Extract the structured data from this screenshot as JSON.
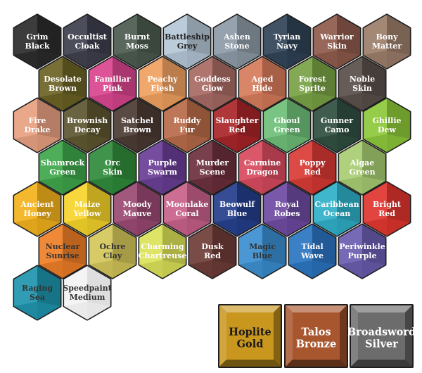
{
  "hex_swatches": [
    {
      "id": "grim-black",
      "line1": "Grim",
      "line2": "Black",
      "color": "#2b2b2b",
      "text": "#ffffff"
    },
    {
      "id": "occultist-cloak",
      "line1": "Occultist",
      "line2": "Cloak",
      "color": "#3e3f4d",
      "text": "#ffffff"
    },
    {
      "id": "burnt-moss",
      "line1": "Burnt",
      "line2": "Moss",
      "color": "#4b5a4e",
      "text": "#ffffff"
    },
    {
      "id": "battleship-grey",
      "line1": "Battleship",
      "line2": "Grey",
      "color": "#b5c7d6",
      "text": "#222222"
    },
    {
      "id": "ashen-stone",
      "line1": "Ashen",
      "line2": "Stone",
      "color": "#8d9aa6",
      "text": "#ffffff"
    },
    {
      "id": "tyrian-navy",
      "line1": "Tyrian",
      "line2": "Navy",
      "color": "#2f4356",
      "text": "#ffffff"
    },
    {
      "id": "warrior-skin",
      "line1": "Warrior",
      "line2": "Skin",
      "color": "#8e5a4c",
      "text": "#ffffff"
    },
    {
      "id": "bony-matter",
      "line1": "Bony",
      "line2": "Matter",
      "color": "#9c7e6a",
      "text": "#ffffff"
    },
    {
      "id": "desolate-brown",
      "line1": "Desolate",
      "line2": "Brown",
      "color": "#6b6224",
      "text": "#ffffff"
    },
    {
      "id": "familiar-pink",
      "line1": "Familiar",
      "line2": "Pink",
      "color": "#d9458e",
      "text": "#ffffff"
    },
    {
      "id": "peachy-flesh",
      "line1": "Peachy",
      "line2": "Flesh",
      "color": "#f0a060",
      "text": "#ffffff"
    },
    {
      "id": "goddess-glow",
      "line1": "Goddess",
      "line2": "Glow",
      "color": "#a86a64",
      "text": "#ffffff"
    },
    {
      "id": "aged-hide",
      "line1": "Aged",
      "line2": "Hide",
      "color": "#d67a5a",
      "text": "#ffffff"
    },
    {
      "id": "forest-sprite",
      "line1": "Forest",
      "line2": "Sprite",
      "color": "#78a245",
      "text": "#ffffff"
    },
    {
      "id": "noble-skin",
      "line1": "Noble",
      "line2": "Skin",
      "color": "#5a4f4a",
      "text": "#ffffff"
    },
    {
      "id": "fire-drake",
      "line1": "Fire",
      "line2": "Drake",
      "color": "#e8a081",
      "text": "#ffffff"
    },
    {
      "id": "brownish-decay",
      "line1": "Brownish",
      "line2": "Decay",
      "color": "#5d5530",
      "text": "#ffffff"
    },
    {
      "id": "satchel-brown",
      "line1": "Satchel",
      "line2": "Brown",
      "color": "#4b3a33",
      "text": "#ffffff"
    },
    {
      "id": "ruddy-fur",
      "line1": "Ruddy",
      "line2": "Fur",
      "color": "#b76a48",
      "text": "#ffffff"
    },
    {
      "id": "slaughter-red",
      "line1": "Slaughter",
      "line2": "Red",
      "color": "#a82428",
      "text": "#ffffff"
    },
    {
      "id": "ghoul-green",
      "line1": "Ghoul",
      "line2": "Green",
      "color": "#6ebf78",
      "text": "#ffffff"
    },
    {
      "id": "gunner-camo",
      "line1": "Gunner",
      "line2": "Camo",
      "color": "#2f4e40",
      "text": "#ffffff"
    },
    {
      "id": "ghillie-dew",
      "line1": "Ghillie",
      "line2": "Dew",
      "color": "#8cc83a",
      "text": "#ffffff"
    },
    {
      "id": "shamrock-green",
      "line1": "Shamrock",
      "line2": "Green",
      "color": "#3ea64a",
      "text": "#ffffff"
    },
    {
      "id": "orc-skin",
      "line1": "Orc",
      "line2": "Skin",
      "color": "#2f8a3a",
      "text": "#ffffff"
    },
    {
      "id": "purple-swarm",
      "line1": "Purple",
      "line2": "Swarm",
      "color": "#6a3e96",
      "text": "#ffffff"
    },
    {
      "id": "murder-scene",
      "line1": "Murder",
      "line2": "Scene",
      "color": "#6c2e3c",
      "text": "#ffffff"
    },
    {
      "id": "carmine-dragon",
      "line1": "Carmine",
      "line2": "Dragon",
      "color": "#d84a5e",
      "text": "#ffffff"
    },
    {
      "id": "poppy-red",
      "line1": "Poppy",
      "line2": "Red",
      "color": "#d83a34",
      "text": "#ffffff"
    },
    {
      "id": "algae-green",
      "line1": "Algae",
      "line2": "Green",
      "color": "#a8cd72",
      "text": "#ffffff"
    },
    {
      "id": "ancient-honey",
      "line1": "Ancient",
      "line2": "Honey",
      "color": "#f2b21c",
      "text": "#ffffff"
    },
    {
      "id": "maize-yellow",
      "line1": "Maize",
      "line2": "Yellow",
      "color": "#f6d42a",
      "text": "#ffffff"
    },
    {
      "id": "moody-mauve",
      "line1": "Moody",
      "line2": "Mauve",
      "color": "#9a4872",
      "text": "#ffffff"
    },
    {
      "id": "moonlake-coral",
      "line1": "Moonlake",
      "line2": "Coral",
      "color": "#c8608a",
      "text": "#ffffff"
    },
    {
      "id": "beowulf-blue",
      "line1": "Beowulf",
      "line2": "Blue",
      "color": "#243e8c",
      "text": "#ffffff"
    },
    {
      "id": "royal-robes",
      "line1": "Royal",
      "line2": "Robes",
      "color": "#6e4aa2",
      "text": "#ffffff"
    },
    {
      "id": "caribbean-ocean",
      "line1": "Caribbean",
      "line2": "Ocean",
      "color": "#2fb0c8",
      "text": "#ffffff"
    },
    {
      "id": "bright-red",
      "line1": "Bright",
      "line2": "Red",
      "color": "#e0352e",
      "text": "#ffffff"
    },
    {
      "id": "nuclear-sunrise",
      "line1": "Nuclear",
      "line2": "Sunrise",
      "color": "#ee7e26",
      "text": "#333333"
    },
    {
      "id": "ochre-clay",
      "line1": "Ochre",
      "line2": "Clay",
      "color": "#d3c65a",
      "text": "#333333"
    },
    {
      "id": "charming-chartreuse",
      "line1": "Charming",
      "line2": "Chartreuse",
      "color": "#dbe258",
      "text": "#ffffff"
    },
    {
      "id": "dusk-red",
      "line1": "Dusk",
      "line2": "Red",
      "color": "#6e3c38",
      "text": "#ffffff"
    },
    {
      "id": "magic-blue",
      "line1": "Magic",
      "line2": "Blue",
      "color": "#3a8ed0",
      "text": "#333333"
    },
    {
      "id": "tidal-wave",
      "line1": "Tidal",
      "line2": "Wave",
      "color": "#2a74c0",
      "text": "#ffffff"
    },
    {
      "id": "periwinkle-purple",
      "line1": "Periwinkle",
      "line2": "Purple",
      "color": "#6a5cb0",
      "text": "#ffffff"
    },
    {
      "id": "raging-sea",
      "line1": "Raging",
      "line2": "Sea",
      "color": "#1e95ad",
      "text": "#333333"
    },
    {
      "id": "speedpaint-medium",
      "line1": "Speedpaint",
      "line2": "Medium",
      "color": "#ffffff",
      "text": "#333333"
    }
  ],
  "metallic_swatches": [
    {
      "id": "hoplite-gold",
      "line1": "Hoplite",
      "line2": "Gold",
      "color": "#c9961e",
      "text": "#1a1a1a"
    },
    {
      "id": "talos-bronze",
      "line1": "Talos",
      "line2": "Bronze",
      "color": "#a8562e",
      "text": "#ffffff"
    },
    {
      "id": "broadsword-silver",
      "line1": "Broadsword",
      "line2": "Silver",
      "color": "#6c6c6c",
      "text": "#ffffff"
    }
  ]
}
